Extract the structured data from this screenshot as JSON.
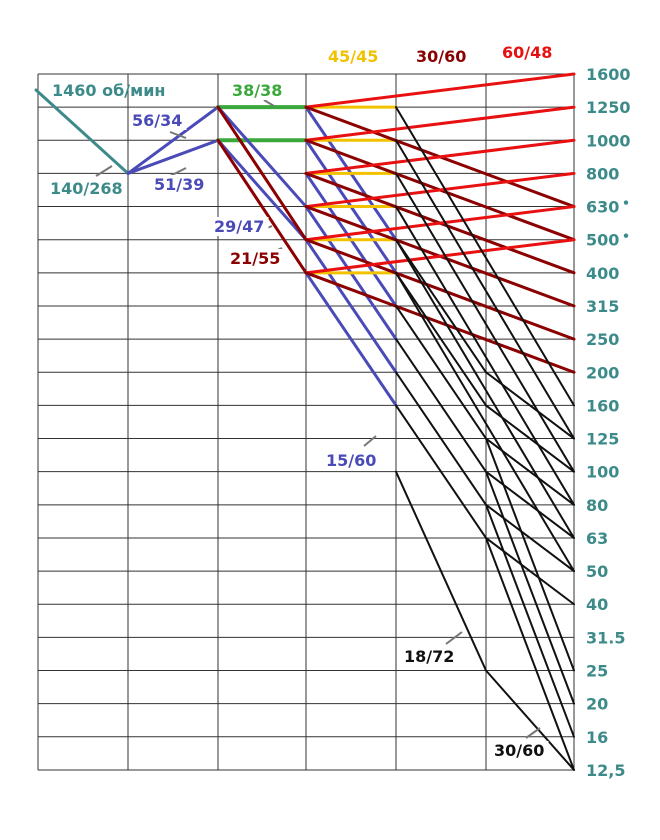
{
  "diagram": {
    "motor_speed_label": "1460 об/мин",
    "speeds": [
      "1600",
      "1250",
      "1000",
      "800",
      "630",
      "500",
      "400",
      "315",
      "250",
      "200",
      "160",
      "125",
      "100",
      "80",
      "63",
      "50",
      "40",
      "31.5",
      "25",
      "20",
      "16",
      "12,5"
    ],
    "marked_speeds": [
      "630",
      "500"
    ],
    "top_ratios": [
      {
        "text": "45/45",
        "color": "#f2c200"
      },
      {
        "text": "30/60",
        "color": "#8b0000"
      },
      {
        "text": "60/48",
        "color": "#e81010"
      }
    ],
    "ratio_labels": [
      {
        "text": "140/268",
        "color": "#3d8a8a"
      },
      {
        "text": "56/34",
        "color": "#4a4ab8"
      },
      {
        "text": "51/39",
        "color": "#4a4ab8"
      },
      {
        "text": "38/38",
        "color": "#3aa83a"
      },
      {
        "text": "29/47",
        "color": "#4a4ab8"
      },
      {
        "text": "21/55",
        "color": "#8b0000"
      },
      {
        "text": "15/60",
        "color": "#4a4ab8"
      },
      {
        "text": "18/72",
        "color": "#111111"
      },
      {
        "text": "30/60",
        "color": "#111111"
      }
    ],
    "colors": {
      "teal": "#3d8a8a",
      "blue": "#4a4ab8",
      "green": "#3aa83a",
      "yellow": "#f2c200",
      "darkred": "#8b0000",
      "red": "#e81010",
      "black": "#111111",
      "grid": "#333333"
    }
  }
}
